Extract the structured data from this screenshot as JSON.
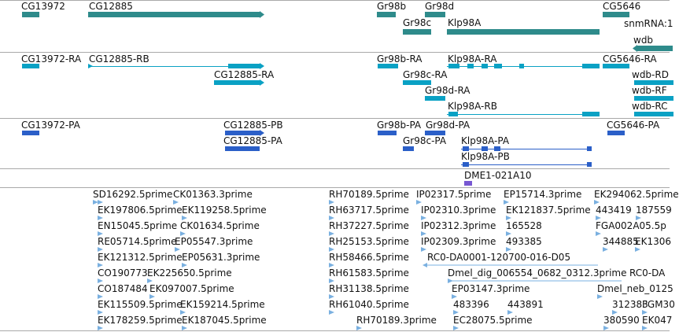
{
  "colors": {
    "gene": "#2e8b8b",
    "transcript": "#0aa1c4",
    "protein": "#2b5fc8",
    "clone": "#7757d2",
    "est": "#7ab0e0",
    "divider": "#a9a9a9"
  },
  "tracks": {
    "genes": {
      "labels": [
        "CG13972",
        "CG12885",
        "Gr98b",
        "Gr98d",
        "Gr98c",
        "Klp98A",
        "CG5646",
        "snmRNA:1",
        "wdb"
      ]
    },
    "transcripts": {
      "labels": [
        "CG13972-RA",
        "CG12885-RB",
        "CG12885-RA",
        "Gr98b-RA",
        "Klp98A-RA",
        "Gr98c-RA",
        "Gr98d-RA",
        "Klp98A-RB",
        "CG5646-RA",
        "wdb-RD",
        "wdb-RF",
        "wdb-RC"
      ]
    },
    "proteins": {
      "labels": [
        "CG13972-PA",
        "CG12885-PB",
        "CG12885-PA",
        "Gr98b-PA",
        "Gr98d-PA",
        "Gr98c-PA",
        "Klp98A-PA",
        "Klp98A-PB",
        "CG5646-PA"
      ]
    },
    "clones": {
      "labels": [
        "DME1-021A10"
      ]
    },
    "ests": {
      "labels": [
        "SD16292.5prime",
        "CK01363.3prime",
        "EK197806.5prime",
        "EK119258.5prime",
        "EN15045.5prime",
        "CK01634.5prime",
        "RE05714.5prime",
        "EP05547.3prime",
        "EK121312.5prime",
        "EP05631.3prime",
        "CO190773",
        "EK225650.5prime",
        "CO187484",
        "EK097007.5prime",
        "EK115509.5prime",
        "EK159214.5prime",
        "EK178259.5prime",
        "EK187045.5prime",
        "RH70189.5prime",
        "RH63717.5prime",
        "RH37227.5prime",
        "RH25153.5prime",
        "RH58466.5prime",
        "RH61583.5prime",
        "RH31138.5prime",
        "RH61040.5prime",
        "RH70189.3prime",
        "IP02317.5prime",
        "IP02310.3prime",
        "IP02312.3prime",
        "IP02309.3prime",
        "RC0-DA0001-120700-016-D05",
        "Dmel_dig_006554_0682_0312.3prime",
        "EP03147.3prime",
        "483396",
        "443891",
        "EC28075.5prime",
        "EP15714.3prime",
        "EK121837.5prime",
        "165528",
        "493385",
        "EK294062.5prime",
        "443419",
        "187559",
        "FGA002A05.5p",
        "344885",
        "EK1306",
        "RC0-DA",
        "Dmel_neb_0125",
        "312383",
        "FGM30",
        "380590",
        "EK047"
      ]
    }
  }
}
